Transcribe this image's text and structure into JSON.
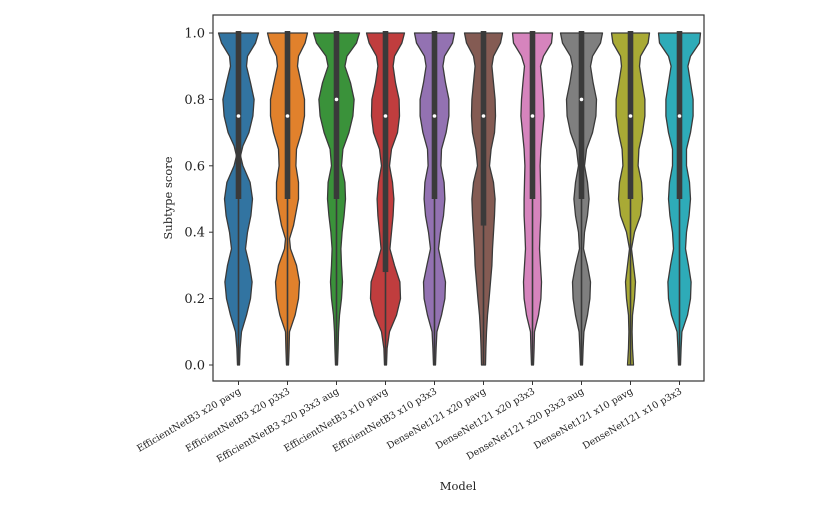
{
  "chart_data": {
    "type": "violin",
    "title": "",
    "xlabel": "Model",
    "ylabel": "Subtype score",
    "ylim": [
      0.0,
      1.0
    ],
    "yticks": [
      "0.0",
      "0.2",
      "0.4",
      "0.6",
      "0.8",
      "1.0"
    ],
    "ytick_values": [
      0.0,
      0.2,
      0.4,
      0.6,
      0.8,
      1.0
    ],
    "grid": false,
    "legend": "none",
    "categories": [
      "EfficientNetB3 x20 pavg",
      "EfficientNetB3 x20 p3x3",
      "EfficientNetB3 x20 p3x3 aug",
      "EfficientNetB3 x10 pavg",
      "EfficientNetB3 x10 p3x3",
      "DenseNet121 x20 pavg",
      "DenseNet121 x20 p3x3",
      "DenseNet121 x20 p3x3 aug",
      "DenseNet121 x10 pavg",
      "DenseNet121 x10 p3x3"
    ],
    "series": [
      {
        "name": "EfficientNetB3 x20 pavg",
        "color": "#3274a1",
        "median": 0.75,
        "q1": 0.5,
        "q3": 1.0,
        "min": 0.0,
        "max": 1.0,
        "density": [
          [
            0.0,
            0.05
          ],
          [
            0.05,
            0.08
          ],
          [
            0.1,
            0.15
          ],
          [
            0.15,
            0.4
          ],
          [
            0.2,
            0.6
          ],
          [
            0.25,
            0.68
          ],
          [
            0.3,
            0.55
          ],
          [
            0.35,
            0.35
          ],
          [
            0.4,
            0.45
          ],
          [
            0.45,
            0.62
          ],
          [
            0.5,
            0.7
          ],
          [
            0.55,
            0.58
          ],
          [
            0.6,
            0.22
          ],
          [
            0.63,
            0.1
          ],
          [
            0.66,
            0.22
          ],
          [
            0.7,
            0.52
          ],
          [
            0.75,
            0.72
          ],
          [
            0.8,
            0.78
          ],
          [
            0.85,
            0.6
          ],
          [
            0.9,
            0.4
          ],
          [
            0.93,
            0.45
          ],
          [
            0.97,
            0.85
          ],
          [
            1.0,
            1.0
          ]
        ]
      },
      {
        "name": "EfficientNetB3 x20 p3x3",
        "color": "#e1812c",
        "median": 0.75,
        "q1": 0.5,
        "q3": 1.0,
        "min": 0.0,
        "max": 1.0,
        "density": [
          [
            0.0,
            0.05
          ],
          [
            0.05,
            0.08
          ],
          [
            0.1,
            0.1
          ],
          [
            0.15,
            0.38
          ],
          [
            0.2,
            0.55
          ],
          [
            0.25,
            0.6
          ],
          [
            0.3,
            0.45
          ],
          [
            0.35,
            0.15
          ],
          [
            0.38,
            0.1
          ],
          [
            0.42,
            0.3
          ],
          [
            0.5,
            0.55
          ],
          [
            0.55,
            0.55
          ],
          [
            0.6,
            0.42
          ],
          [
            0.65,
            0.45
          ],
          [
            0.7,
            0.7
          ],
          [
            0.75,
            0.85
          ],
          [
            0.8,
            0.85
          ],
          [
            0.85,
            0.68
          ],
          [
            0.9,
            0.5
          ],
          [
            0.93,
            0.55
          ],
          [
            0.97,
            0.88
          ],
          [
            1.0,
            1.0
          ]
        ]
      },
      {
        "name": "EfficientNetB3 x20 p3x3 aug",
        "color": "#3a923a",
        "median": 0.8,
        "q1": 0.5,
        "q3": 1.0,
        "min": 0.0,
        "max": 1.0,
        "density": [
          [
            0.0,
            0.05
          ],
          [
            0.05,
            0.08
          ],
          [
            0.1,
            0.1
          ],
          [
            0.15,
            0.15
          ],
          [
            0.2,
            0.25
          ],
          [
            0.25,
            0.3
          ],
          [
            0.3,
            0.25
          ],
          [
            0.35,
            0.22
          ],
          [
            0.4,
            0.28
          ],
          [
            0.45,
            0.38
          ],
          [
            0.5,
            0.45
          ],
          [
            0.55,
            0.42
          ],
          [
            0.6,
            0.25
          ],
          [
            0.65,
            0.32
          ],
          [
            0.7,
            0.62
          ],
          [
            0.75,
            0.82
          ],
          [
            0.8,
            0.88
          ],
          [
            0.85,
            0.7
          ],
          [
            0.9,
            0.42
          ],
          [
            0.93,
            0.52
          ],
          [
            0.97,
            1.0
          ],
          [
            1.0,
            1.15
          ]
        ]
      },
      {
        "name": "EfficientNetB3 x10 pavg",
        "color": "#c03d3e",
        "median": 0.75,
        "q1": 0.28,
        "q3": 1.0,
        "min": 0.0,
        "max": 1.0,
        "density": [
          [
            0.0,
            0.05
          ],
          [
            0.05,
            0.08
          ],
          [
            0.1,
            0.2
          ],
          [
            0.15,
            0.55
          ],
          [
            0.2,
            0.75
          ],
          [
            0.25,
            0.72
          ],
          [
            0.3,
            0.45
          ],
          [
            0.35,
            0.22
          ],
          [
            0.4,
            0.3
          ],
          [
            0.45,
            0.38
          ],
          [
            0.5,
            0.42
          ],
          [
            0.55,
            0.35
          ],
          [
            0.6,
            0.2
          ],
          [
            0.65,
            0.3
          ],
          [
            0.7,
            0.6
          ],
          [
            0.75,
            0.7
          ],
          [
            0.8,
            0.68
          ],
          [
            0.85,
            0.5
          ],
          [
            0.9,
            0.38
          ],
          [
            0.93,
            0.45
          ],
          [
            0.97,
            0.82
          ],
          [
            1.0,
            0.95
          ]
        ]
      },
      {
        "name": "EfficientNetB3 x10 p3x3",
        "color": "#9372b2",
        "median": 0.75,
        "q1": 0.5,
        "q3": 1.0,
        "min": 0.0,
        "max": 1.0,
        "density": [
          [
            0.0,
            0.05
          ],
          [
            0.05,
            0.08
          ],
          [
            0.1,
            0.12
          ],
          [
            0.15,
            0.35
          ],
          [
            0.2,
            0.52
          ],
          [
            0.25,
            0.55
          ],
          [
            0.3,
            0.38
          ],
          [
            0.35,
            0.2
          ],
          [
            0.4,
            0.3
          ],
          [
            0.45,
            0.45
          ],
          [
            0.5,
            0.52
          ],
          [
            0.55,
            0.48
          ],
          [
            0.6,
            0.32
          ],
          [
            0.65,
            0.35
          ],
          [
            0.7,
            0.58
          ],
          [
            0.75,
            0.72
          ],
          [
            0.8,
            0.72
          ],
          [
            0.85,
            0.55
          ],
          [
            0.9,
            0.42
          ],
          [
            0.93,
            0.5
          ],
          [
            0.97,
            0.9
          ],
          [
            1.0,
            1.0
          ]
        ]
      },
      {
        "name": "DenseNet121 x20 pavg",
        "color": "#845b53",
        "median": 0.75,
        "q1": 0.42,
        "q3": 1.0,
        "min": 0.0,
        "max": 1.0,
        "density": [
          [
            0.0,
            0.1
          ],
          [
            0.05,
            0.12
          ],
          [
            0.1,
            0.15
          ],
          [
            0.15,
            0.2
          ],
          [
            0.2,
            0.28
          ],
          [
            0.25,
            0.35
          ],
          [
            0.3,
            0.42
          ],
          [
            0.35,
            0.45
          ],
          [
            0.4,
            0.5
          ],
          [
            0.45,
            0.55
          ],
          [
            0.5,
            0.58
          ],
          [
            0.55,
            0.5
          ],
          [
            0.6,
            0.3
          ],
          [
            0.65,
            0.38
          ],
          [
            0.7,
            0.55
          ],
          [
            0.75,
            0.6
          ],
          [
            0.8,
            0.58
          ],
          [
            0.85,
            0.5
          ],
          [
            0.9,
            0.42
          ],
          [
            0.93,
            0.5
          ],
          [
            0.97,
            0.85
          ],
          [
            1.0,
            0.95
          ]
        ]
      },
      {
        "name": "DenseNet121 x20 p3x3",
        "color": "#d684bd",
        "median": 0.75,
        "q1": 0.5,
        "q3": 1.0,
        "min": 0.0,
        "max": 1.0,
        "density": [
          [
            0.0,
            0.05
          ],
          [
            0.05,
            0.08
          ],
          [
            0.1,
            0.1
          ],
          [
            0.15,
            0.3
          ],
          [
            0.2,
            0.42
          ],
          [
            0.25,
            0.45
          ],
          [
            0.3,
            0.4
          ],
          [
            0.35,
            0.35
          ],
          [
            0.4,
            0.38
          ],
          [
            0.45,
            0.42
          ],
          [
            0.5,
            0.42
          ],
          [
            0.55,
            0.4
          ],
          [
            0.6,
            0.38
          ],
          [
            0.65,
            0.42
          ],
          [
            0.7,
            0.5
          ],
          [
            0.75,
            0.58
          ],
          [
            0.8,
            0.55
          ],
          [
            0.85,
            0.48
          ],
          [
            0.9,
            0.4
          ],
          [
            0.93,
            0.55
          ],
          [
            0.97,
            0.95
          ],
          [
            1.0,
            1.0
          ]
        ]
      },
      {
        "name": "DenseNet121 x20 p3x3 aug",
        "color": "#7f7f7f",
        "median": 0.8,
        "q1": 0.5,
        "q3": 1.0,
        "min": 0.0,
        "max": 1.0,
        "density": [
          [
            0.0,
            0.05
          ],
          [
            0.05,
            0.08
          ],
          [
            0.1,
            0.12
          ],
          [
            0.15,
            0.3
          ],
          [
            0.2,
            0.42
          ],
          [
            0.25,
            0.45
          ],
          [
            0.3,
            0.3
          ],
          [
            0.35,
            0.1
          ],
          [
            0.4,
            0.15
          ],
          [
            0.45,
            0.3
          ],
          [
            0.5,
            0.38
          ],
          [
            0.55,
            0.3
          ],
          [
            0.6,
            0.15
          ],
          [
            0.65,
            0.25
          ],
          [
            0.7,
            0.55
          ],
          [
            0.75,
            0.72
          ],
          [
            0.8,
            0.75
          ],
          [
            0.85,
            0.58
          ],
          [
            0.9,
            0.45
          ],
          [
            0.93,
            0.55
          ],
          [
            0.97,
            0.95
          ],
          [
            1.0,
            1.05
          ]
        ]
      },
      {
        "name": "DenseNet121 x10 pavg",
        "color": "#a9aa35",
        "median": 0.75,
        "q1": 0.5,
        "q3": 1.0,
        "min": 0.0,
        "max": 1.0,
        "density": [
          [
            0.0,
            0.15
          ],
          [
            0.05,
            0.1
          ],
          [
            0.1,
            0.08
          ],
          [
            0.15,
            0.1
          ],
          [
            0.2,
            0.2
          ],
          [
            0.25,
            0.25
          ],
          [
            0.3,
            0.15
          ],
          [
            0.35,
            0.05
          ],
          [
            0.4,
            0.2
          ],
          [
            0.45,
            0.5
          ],
          [
            0.5,
            0.6
          ],
          [
            0.55,
            0.55
          ],
          [
            0.6,
            0.38
          ],
          [
            0.65,
            0.42
          ],
          [
            0.7,
            0.6
          ],
          [
            0.75,
            0.72
          ],
          [
            0.8,
            0.72
          ],
          [
            0.85,
            0.58
          ],
          [
            0.9,
            0.45
          ],
          [
            0.93,
            0.5
          ],
          [
            0.97,
            0.88
          ],
          [
            1.0,
            0.95
          ]
        ]
      },
      {
        "name": "DenseNet121 x10 p3x3",
        "color": "#2eabb8",
        "median": 0.75,
        "q1": 0.5,
        "q3": 1.0,
        "min": 0.0,
        "max": 1.0,
        "density": [
          [
            0.0,
            0.05
          ],
          [
            0.05,
            0.08
          ],
          [
            0.1,
            0.12
          ],
          [
            0.15,
            0.4
          ],
          [
            0.2,
            0.55
          ],
          [
            0.25,
            0.58
          ],
          [
            0.3,
            0.45
          ],
          [
            0.35,
            0.3
          ],
          [
            0.4,
            0.35
          ],
          [
            0.45,
            0.48
          ],
          [
            0.5,
            0.55
          ],
          [
            0.55,
            0.5
          ],
          [
            0.6,
            0.35
          ],
          [
            0.65,
            0.35
          ],
          [
            0.7,
            0.55
          ],
          [
            0.75,
            0.68
          ],
          [
            0.8,
            0.68
          ],
          [
            0.85,
            0.55
          ],
          [
            0.9,
            0.42
          ],
          [
            0.93,
            0.55
          ],
          [
            0.97,
            1.0
          ],
          [
            1.0,
            1.05
          ]
        ]
      }
    ]
  }
}
